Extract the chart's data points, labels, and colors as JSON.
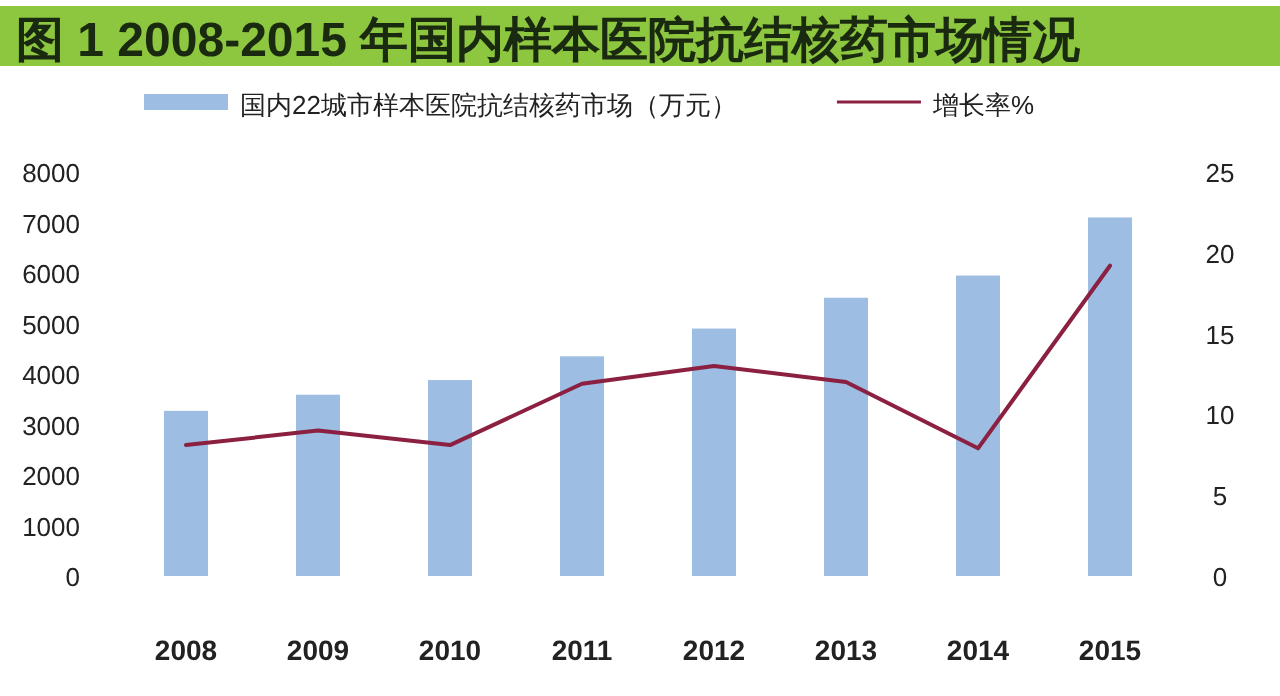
{
  "chart_data": {
    "type": "bar",
    "title": "图 1  2008-2015 年国内样本医院抗结核药市场情况",
    "categories": [
      "2008",
      "2009",
      "2010",
      "2011",
      "2012",
      "2013",
      "2014",
      "2015"
    ],
    "series": [
      {
        "name": "国内22城市样本医院抗结核药市场（万元）",
        "color": "#9dbde3",
        "values": [
          3270,
          3590,
          3880,
          4350,
          4900,
          5510,
          5950,
          7100
        ]
      },
      {
        "name": "增长率%",
        "type": "line",
        "axis": "y2",
        "color": "#8b2040",
        "values": [
          8.1,
          9.0,
          8.1,
          11.9,
          13.0,
          12.0,
          7.9,
          19.2
        ]
      }
    ],
    "ylim": [
      0,
      8000
    ],
    "yticks": [
      0,
      1000,
      2000,
      3000,
      4000,
      5000,
      6000,
      7000,
      8000
    ],
    "y2lim": [
      0,
      25
    ],
    "y2ticks": [
      0,
      5,
      10,
      15,
      20,
      25
    ],
    "legend": "top",
    "grid": false
  }
}
